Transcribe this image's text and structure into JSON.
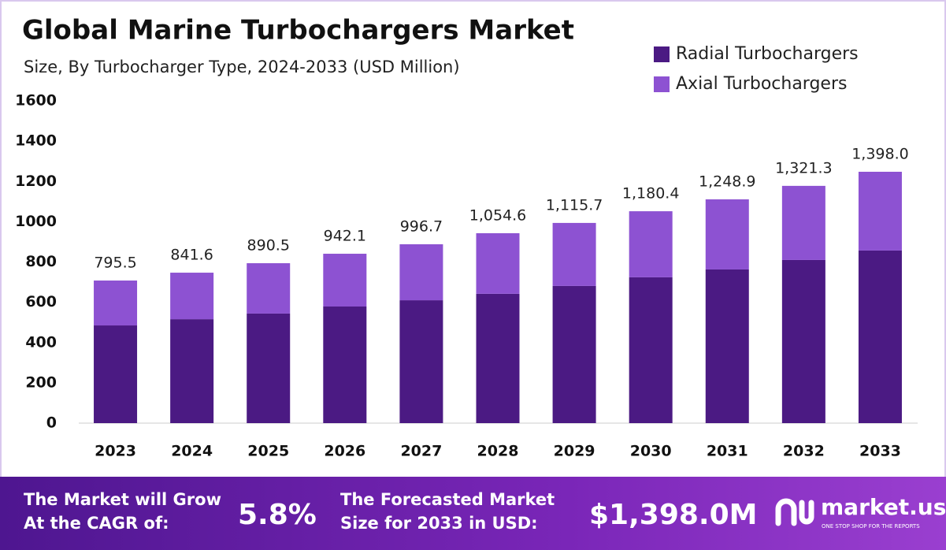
{
  "chart_data": {
    "type": "stacked_bar",
    "title": "Global Marine Turbochargers Market",
    "subtitle": "Size, By Turbocharger Type, 2024-2033 (USD Million)",
    "categories": [
      "2023",
      "2024",
      "2025",
      "2026",
      "2027",
      "2028",
      "2029",
      "2030",
      "2031",
      "2032",
      "2033"
    ],
    "series": [
      {
        "name": "Radial Turbochargers",
        "color": "#4b1a83",
        "values": [
          485,
          516,
          544,
          579,
          610,
          642,
          681,
          724,
          763,
          810,
          857
        ]
      },
      {
        "name": "Axial Turbochargers",
        "color": "#8d52d2",
        "values": [
          223,
          231,
          250,
          262,
          278,
          301,
          313,
          328,
          348,
          368,
          391
        ]
      }
    ],
    "totals": {
      "values": [
        795.5,
        841.6,
        890.5,
        942.1,
        996.7,
        1054.6,
        1115.7,
        1180.4,
        1248.9,
        1321.3,
        1398.0
      ],
      "value_labels": [
        "795.5",
        "841.6",
        "890.5",
        "942.1",
        "996.7",
        "1,054.6",
        "1,115.7",
        "1,180.4",
        "1,248.9",
        "1,321.3",
        "1,398.0"
      ]
    },
    "ylim": [
      0,
      1600
    ],
    "yticks": [
      0,
      200,
      400,
      600,
      800,
      1000,
      1200,
      1400,
      1600
    ],
    "grid": false,
    "legend": "top-right"
  },
  "footer": {
    "cagr_text": [
      "The Market will Grow",
      "At the CAGR of:"
    ],
    "cagr": "5.8%",
    "forecast_text": [
      "The Forecasted Market",
      "Size for 2033 in USD:"
    ],
    "forecast": "$1,398.0M",
    "brand": "market.us",
    "tagline": "ONE STOP SHOP FOR THE REPORTS"
  }
}
